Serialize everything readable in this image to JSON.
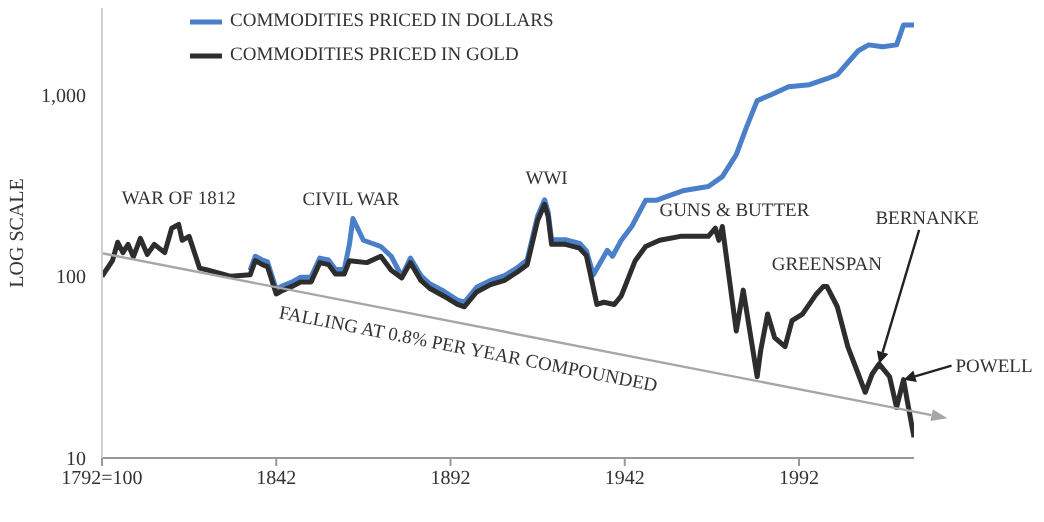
{
  "chart_data": {
    "type": "line",
    "ylabel": "LOG SCALE",
    "log": "y",
    "legend": "top left",
    "xlim": [
      1792,
      2025
    ],
    "xticks": [
      {
        "value": 1792,
        "label": "1792=100"
      },
      1842,
      1892,
      1942,
      1992
    ],
    "ylim": [
      10,
      3000
    ],
    "yticks": [
      10,
      100,
      {
        "value": 1000,
        "label": "1,000"
      }
    ],
    "series": [
      {
        "name": "COMMODITIES PRICED IN DOLLARS",
        "color": "#4a7fc9",
        "x": [
          1834.5,
          1836,
          1838,
          1839.5,
          1842,
          1844,
          1846.5,
          1849,
          1852,
          1854.5,
          1857,
          1859,
          1861.5,
          1863,
          1864,
          1867,
          1872,
          1875,
          1878,
          1880.5,
          1883.5,
          1886,
          1890,
          1894,
          1896,
          1899.5,
          1903.5,
          1907.5,
          1911,
          1914,
          1917,
          1919,
          1920,
          1921,
          1925,
          1929,
          1931,
          1933,
          1937,
          1938.5,
          1941,
          1944,
          1948,
          1951,
          1954,
          1959,
          1966,
          1970,
          1974,
          1977,
          1980,
          1984,
          1989,
          1995,
          2000,
          2003,
          2009,
          2012,
          2016,
          2020,
          2022,
          2025
        ],
        "values": [
          108,
          129,
          123,
          120,
          85,
          89,
          93,
          99,
          99,
          126,
          123,
          109,
          109,
          150,
          208,
          158,
          146,
          129,
          100,
          126,
          101,
          91,
          83,
          74,
          72,
          87,
          95,
          101,
          111,
          123,
          215,
          264,
          227,
          159,
          159,
          152,
          138,
          102,
          139,
          129,
          158,
          188,
          262,
          262,
          275,
          297,
          312,
          354,
          468,
          667,
          927,
          1000,
          1107,
          1135,
          1224,
          1288,
          1745,
          1880,
          1835,
          1880,
          2422,
          2422
        ]
      },
      {
        "name": "COMMODITIES PRICED IN GOLD",
        "color": "#2d2d2d",
        "x": [
          1792,
          1795,
          1796.5,
          1798,
          1799.5,
          1801,
          1803,
          1805,
          1807,
          1810,
          1812,
          1814,
          1815,
          1817,
          1820,
          1822.5,
          1829,
          1834.5,
          1836,
          1838,
          1839.5,
          1842,
          1844,
          1846.5,
          1849,
          1852,
          1854.5,
          1857,
          1859,
          1861.5,
          1863,
          1868,
          1872,
          1875,
          1878,
          1880.5,
          1883.5,
          1886,
          1890,
          1894,
          1896,
          1899.5,
          1903.5,
          1907.5,
          1911,
          1914,
          1917,
          1919,
          1920,
          1921,
          1925,
          1929,
          1931,
          1934,
          1936,
          1939,
          1941,
          1945,
          1948,
          1952,
          1958,
          1966,
          1968,
          1969,
          1970,
          1974,
          1976,
          1980,
          1981,
          1983,
          1985,
          1988,
          1990,
          1993,
          1997,
          1999,
          2000,
          2003,
          2006,
          2009,
          2011,
          2013,
          2015,
          2018,
          2020,
          2022,
          2023,
          2025
        ],
        "values": [
          100,
          122,
          154,
          135,
          150,
          128,
          162,
          132,
          150,
          135,
          184,
          193,
          158,
          166,
          111,
          108,
          100,
          102,
          122,
          116,
          113,
          80,
          84,
          88,
          93,
          93,
          119,
          116,
          103,
          103,
          122,
          119,
          129,
          108,
          98,
          119,
          95,
          86,
          78,
          70,
          68,
          82,
          90,
          95,
          105,
          116,
          203,
          249,
          214,
          150,
          150,
          143,
          130,
          70,
          72,
          70,
          78,
          122,
          146,
          158,
          166,
          166,
          184,
          158,
          188,
          50,
          84,
          28,
          39,
          62,
          46,
          41,
          57,
          62,
          80,
          88,
          88,
          68,
          41,
          29,
          23,
          29,
          33,
          28,
          19,
          27,
          21,
          13
        ]
      },
      {
        "type": "line",
        "color": "#a6a6a6",
        "x": [
          1792,
          2025
        ],
        "values": [
          134,
          18
        ]
      }
    ],
    "annotations": [
      {
        "text": "WAR OF 1812",
        "x": 1814,
        "y": 193
      },
      {
        "text": "CIVIL WAR",
        "x": 1864,
        "y": 208
      },
      {
        "text": "WWI",
        "x": 1919,
        "y": 249
      },
      {
        "text": "GUNS & BUTTER",
        "x": 1966,
        "y": 166
      },
      {
        "text": "GREENSPAN",
        "x": 2000,
        "y": 88
      },
      {
        "text": "BERNANKE",
        "x": 2015,
        "y": 33
      },
      {
        "text": "POWELL",
        "x": 2022,
        "y": 27
      },
      {
        "text": "FALLING AT 0.8% PER YEAR COMPOUNDED",
        "x": 1897,
        "y": 54
      }
    ]
  }
}
